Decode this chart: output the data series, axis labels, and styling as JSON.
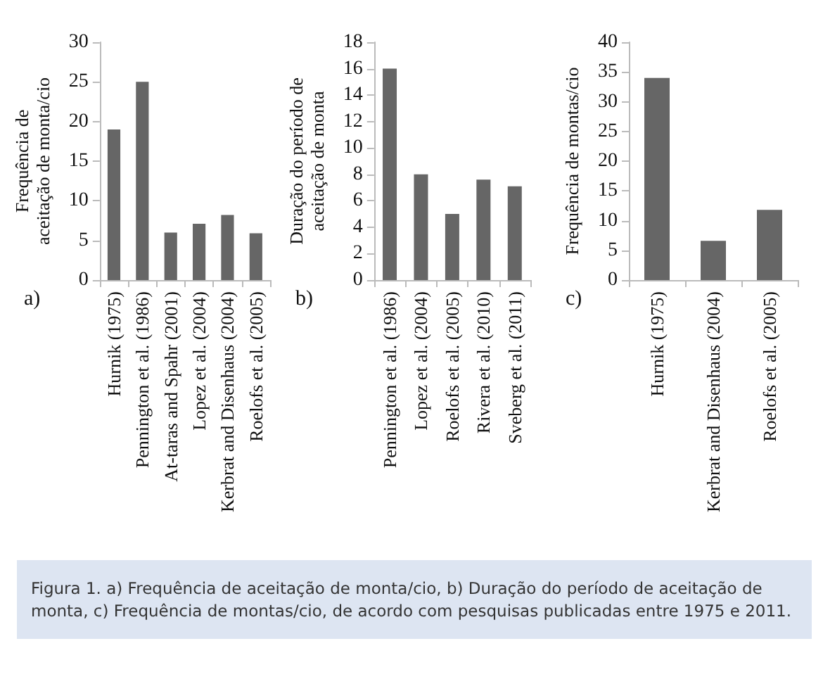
{
  "chart_data": [
    {
      "type": "bar",
      "ylabel": "Frequência de aceitação de monta/cio",
      "categories": [
        "Hurnik (1975)",
        "Pennington et al. (1986)",
        "At-taras and Spahr (2001)",
        "Lopez et al. (2004)",
        "Kerbrat and Disenhaus (2004)",
        "Roelofs et al. (2005)"
      ],
      "values": [
        19,
        25,
        6,
        7.1,
        8.2,
        5.9
      ],
      "color": "#666666",
      "ylim": [
        0,
        30
      ],
      "yticks": [
        0,
        5,
        10,
        15,
        20,
        25,
        30
      ],
      "grid": false,
      "annotations": [
        "a)"
      ]
    },
    {
      "type": "bar",
      "ylabel": "Duração do período de aceitação de monta",
      "categories": [
        "Pennington et al. (1986)",
        "Lopez et al. (2004)",
        "Roelofs et al. (2005)",
        "Rivera et al. (2010)",
        "Sveberg et al. (2011)"
      ],
      "values": [
        16,
        8,
        5,
        7.6,
        7.1
      ],
      "color": "#666666",
      "ylim": [
        0,
        18
      ],
      "yticks": [
        0,
        2,
        4,
        6,
        8,
        10,
        12,
        14,
        16,
        18
      ],
      "grid": false,
      "annotations": [
        "b)"
      ]
    },
    {
      "type": "bar",
      "ylabel": "Frequência de montas/cio",
      "categories": [
        "Hurnik (1975)",
        "Kerbrat and Disenhaus (2004)",
        "Roelofs et al. (2005)"
      ],
      "values": [
        34,
        6.6,
        11.8
      ],
      "color": "#666666",
      "ylim": [
        0,
        40
      ],
      "yticks": [
        0,
        5,
        10,
        15,
        20,
        25,
        30,
        35,
        40
      ],
      "grid": false,
      "annotations": [
        "c)",
        "Figura 1. a) Frequência de aceitação de monta/cio, b) Duração do período de aceitação de monta, c) Frequência de montas/cio, de acordo com pesquisas publicadas entre 1975 e 2011."
      ]
    }
  ]
}
